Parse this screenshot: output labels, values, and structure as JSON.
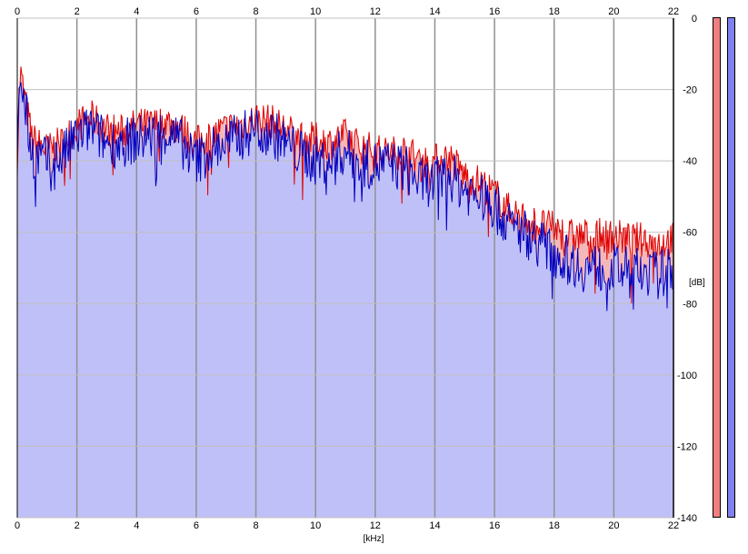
{
  "chart_data": {
    "type": "area",
    "xlabel": "[kHz]",
    "ylabel": "[dB]",
    "xlim": [
      0,
      22
    ],
    "ylim": [
      -140,
      0
    ],
    "x_ticks": [
      "0",
      "2",
      "4",
      "6",
      "8",
      "10",
      "12",
      "14",
      "16",
      "18",
      "20",
      "22"
    ],
    "y_ticks": [
      "0",
      "-20",
      "-40",
      "-60",
      "-80",
      "-100",
      "-120",
      "-140"
    ],
    "grid": true,
    "series": [
      {
        "color": "#e00000",
        "fill": "#f5b8b8",
        "x": [
          0,
          0.1,
          0.2,
          0.5,
          1,
          1.5,
          2,
          2.5,
          3,
          3.5,
          4,
          4.5,
          5,
          5.5,
          6,
          6.5,
          7,
          7.5,
          8,
          8.5,
          9,
          9.5,
          10,
          10.5,
          11,
          11.5,
          12,
          12.5,
          13,
          13.5,
          14,
          14.5,
          15,
          15.5,
          16,
          16.5,
          17,
          17.5,
          18,
          18.5,
          19,
          19.5,
          20,
          20.5,
          21,
          21.5,
          22
        ],
        "values": [
          -39,
          -15,
          -20,
          -34,
          -37,
          -35,
          -30,
          -28,
          -31,
          -32,
          -30,
          -30,
          -29,
          -31,
          -35,
          -33,
          -31,
          -30,
          -28,
          -29,
          -31,
          -34,
          -34,
          -35,
          -33,
          -36,
          -37,
          -38,
          -37,
          -40,
          -40,
          -39,
          -44,
          -46,
          -49,
          -54,
          -56,
          -58,
          -59,
          -61,
          -61,
          -61,
          -61,
          -62,
          -62,
          -63,
          -62
        ]
      },
      {
        "color": "#0000c0",
        "fill": "#c0c0f8",
        "x": [
          0,
          0.1,
          0.2,
          0.5,
          1,
          1.5,
          2,
          2.5,
          3,
          3.5,
          4,
          4.5,
          5,
          5.5,
          6,
          6.5,
          7,
          7.5,
          8,
          8.5,
          9,
          9.5,
          10,
          10.5,
          11,
          11.5,
          12,
          12.5,
          13,
          13.5,
          14,
          14.5,
          15,
          15.5,
          16,
          16.5,
          17,
          17.5,
          18,
          18.5,
          19,
          19.5,
          20,
          20.5,
          21,
          21.5,
          22
        ],
        "values": [
          -41,
          -14,
          -22,
          -38,
          -40,
          -39,
          -33,
          -31,
          -35,
          -35,
          -34,
          -33,
          -32,
          -35,
          -40,
          -37,
          -35,
          -33,
          -31,
          -32,
          -35,
          -38,
          -40,
          -40,
          -37,
          -41,
          -41,
          -41,
          -42,
          -46,
          -46,
          -44,
          -48,
          -50,
          -53,
          -58,
          -60,
          -63,
          -66,
          -68,
          -70,
          -70,
          -70,
          -71,
          -71,
          -72,
          -70
        ]
      }
    ]
  }
}
